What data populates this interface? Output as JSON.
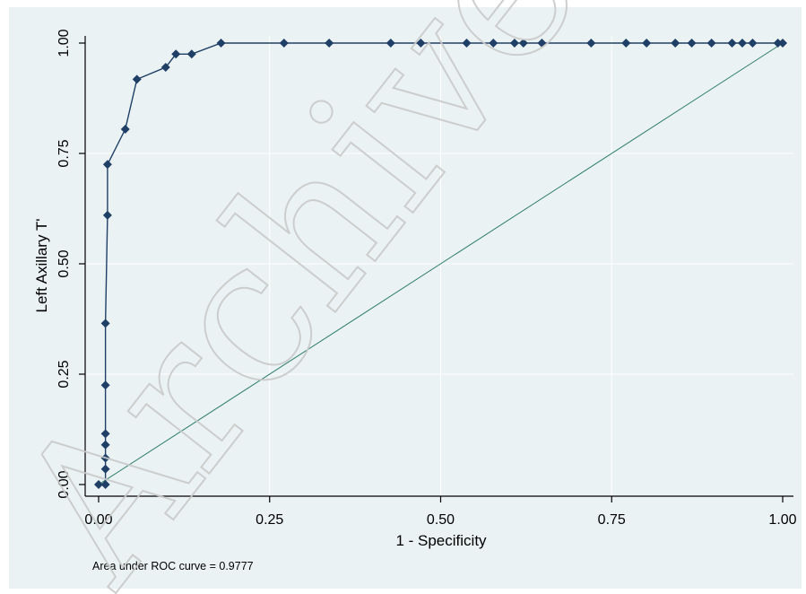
{
  "chart_data": {
    "type": "line",
    "xlabel": "1 - Specificity",
    "ylabel": "Left Axillary T'",
    "xlim": [
      0,
      1
    ],
    "ylim": [
      0,
      1
    ],
    "x_ticks": [
      "0.00",
      "0.25",
      "0.50",
      "0.75",
      "1.00"
    ],
    "y_ticks": [
      "0.00",
      "0.25",
      "0.50",
      "0.75",
      "1.00"
    ],
    "grid": true,
    "note": "Area under ROC curve = 0.9777",
    "watermark": "Archive of S",
    "colors": {
      "series": "#1f3f66",
      "reference": "#2e7d6a",
      "background": "#eaf2f3",
      "grid": "#ffffff"
    },
    "series": [
      {
        "x": [
          0.0,
          0.01,
          0.01,
          0.01,
          0.01,
          0.01,
          0.01,
          0.01,
          0.013,
          0.013,
          0.039,
          0.056,
          0.098,
          0.113,
          0.136,
          0.179,
          0.271,
          0.337,
          0.427,
          0.471,
          0.538,
          0.577,
          0.608,
          0.621,
          0.648,
          0.72,
          0.771,
          0.801,
          0.843,
          0.867,
          0.896,
          0.926,
          0.941,
          0.956,
          0.993,
          1.0
        ],
        "y": [
          0.0,
          0.0,
          0.035,
          0.06,
          0.09,
          0.115,
          0.225,
          0.365,
          0.61,
          0.725,
          0.805,
          0.918,
          0.945,
          0.975,
          0.975,
          1.0,
          1.0,
          1.0,
          1.0,
          1.0,
          1.0,
          1.0,
          1.0,
          1.0,
          1.0,
          1.0,
          1.0,
          1.0,
          1.0,
          1.0,
          1.0,
          1.0,
          1.0,
          1.0,
          1.0,
          1.0
        ]
      }
    ],
    "reference_line": {
      "x": [
        0,
        1
      ],
      "y": [
        0,
        1
      ]
    }
  }
}
